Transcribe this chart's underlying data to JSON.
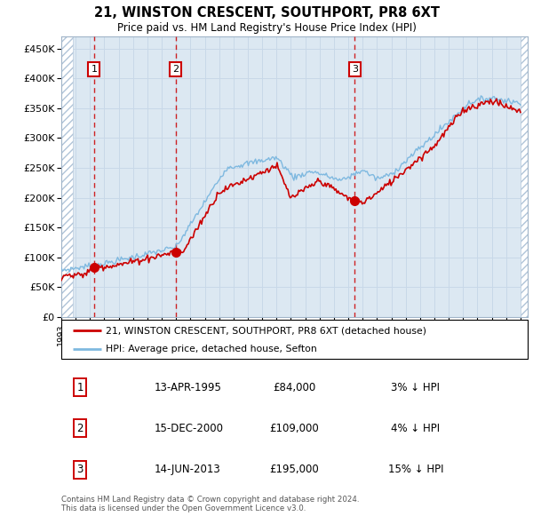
{
  "title": "21, WINSTON CRESCENT, SOUTHPORT, PR8 6XT",
  "subtitle": "Price paid vs. HM Land Registry's House Price Index (HPI)",
  "xlim_start": 1993.0,
  "xlim_end": 2025.5,
  "ylim_min": 0,
  "ylim_max": 470000,
  "yticks": [
    0,
    50000,
    100000,
    150000,
    200000,
    250000,
    300000,
    350000,
    400000,
    450000
  ],
  "ytick_labels": [
    "£0",
    "£50K",
    "£100K",
    "£150K",
    "£200K",
    "£250K",
    "£300K",
    "£350K",
    "£400K",
    "£450K"
  ],
  "sale_dates": [
    1995.28,
    2000.96,
    2013.45
  ],
  "sale_prices": [
    84000,
    109000,
    195000
  ],
  "sale_labels": [
    "1",
    "2",
    "3"
  ],
  "legend_entries": [
    "21, WINSTON CRESCENT, SOUTHPORT, PR8 6XT (detached house)",
    "HPI: Average price, detached house, Sefton"
  ],
  "table_data": [
    {
      "num": "1",
      "date": "13-APR-1995",
      "price": "£84,000",
      "hpi": "3% ↓ HPI"
    },
    {
      "num": "2",
      "date": "15-DEC-2000",
      "price": "£109,000",
      "hpi": "4% ↓ HPI"
    },
    {
      "num": "3",
      "date": "14-JUN-2013",
      "price": "£195,000",
      "hpi": "15% ↓ HPI"
    }
  ],
  "footnote": "Contains HM Land Registry data © Crown copyright and database right 2024.\nThis data is licensed under the Open Government Licence v3.0.",
  "hpi_color": "#7fb9e0",
  "price_color": "#cc0000",
  "sale_dot_color": "#cc0000",
  "vline_color": "#cc0000",
  "grid_color": "#c8d8e8",
  "plot_bg": "#dce8f2"
}
